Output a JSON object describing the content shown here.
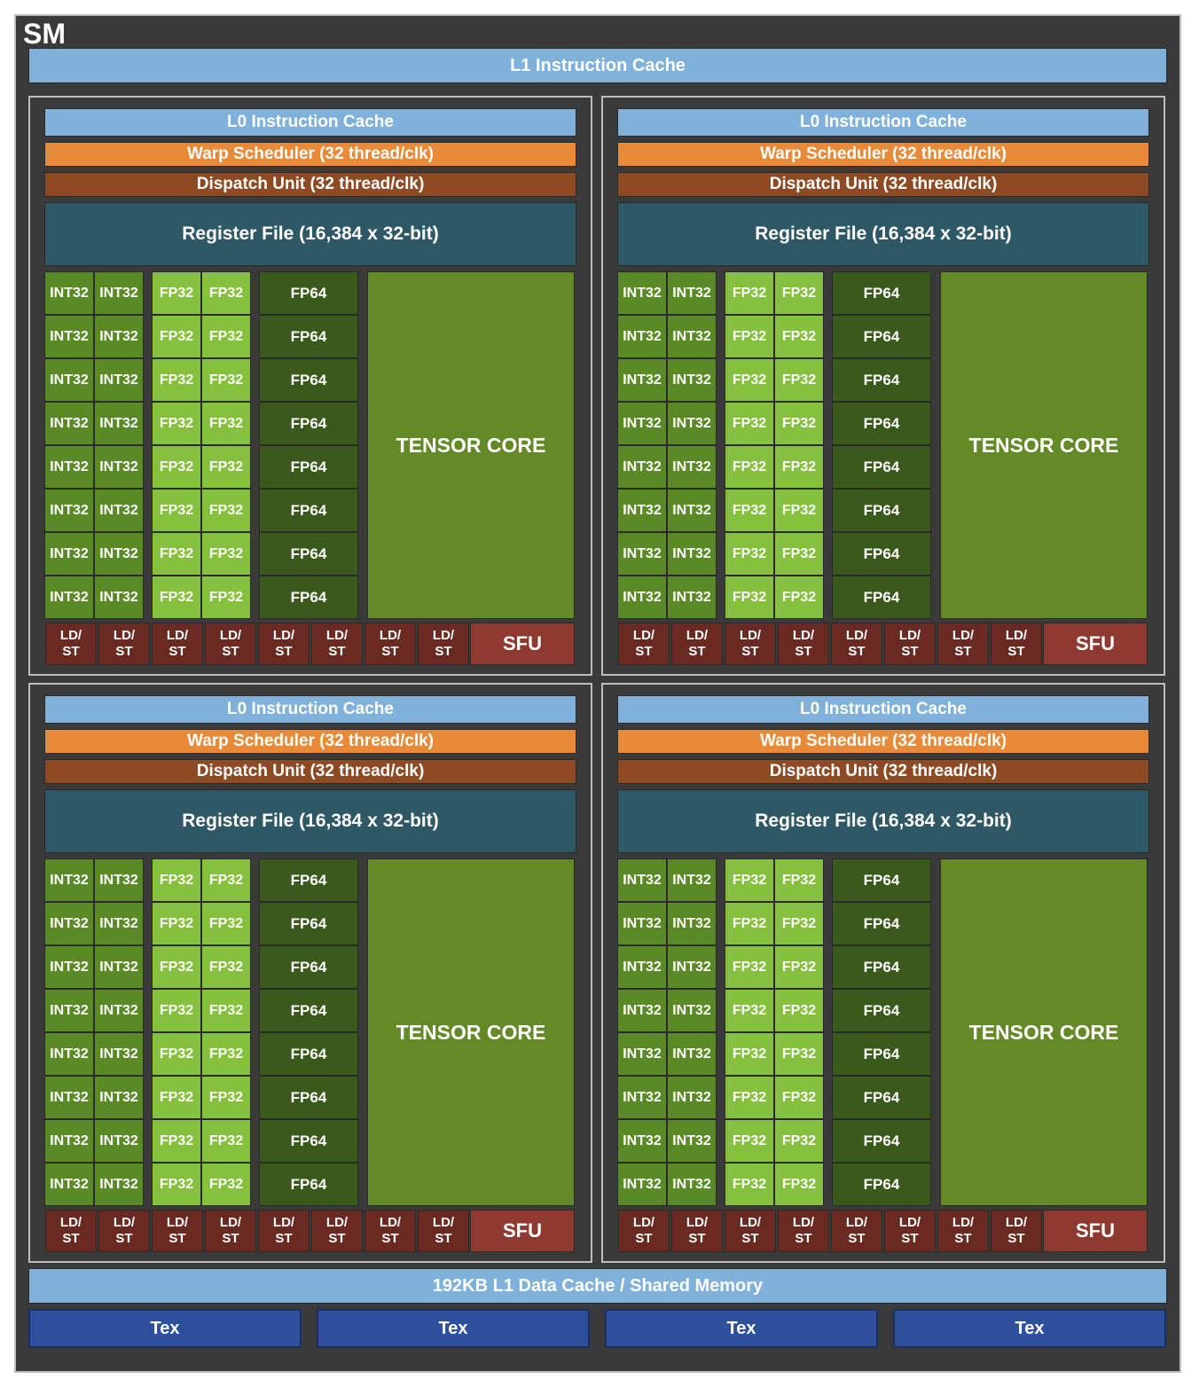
{
  "sm_label": "SM",
  "l1_instruction_cache": "L1 Instruction Cache",
  "l1_data_cache": "192KB L1 Data Cache / Shared Memory",
  "tex_units": [
    "Tex",
    "Tex",
    "Tex",
    "Tex"
  ],
  "partition": {
    "l0_cache": "L0 Instruction Cache",
    "warp_scheduler": "Warp Scheduler (32 thread/clk)",
    "dispatch_unit": "Dispatch Unit (32 thread/clk)",
    "register_file": "Register File (16,384 x 32-bit)",
    "int32_label": "INT32",
    "fp32_label": "FP32",
    "fp64_label": "FP64",
    "tensor_core": "TENSOR CORE",
    "ldst_top": "LD/",
    "ldst_bottom": "ST",
    "sfu": "SFU",
    "rows": 8,
    "ldst_units": 8
  },
  "partition_count": 4,
  "colors": {
    "cache": "#7fb1db",
    "warp_scheduler": "#e88a37",
    "dispatch_unit": "#8e4a22",
    "register_file": "#2f5866",
    "int32": "#5a8a26",
    "fp32": "#86c13d",
    "fp64": "#3a5a1c",
    "tensor_core": "#648a28",
    "ldst": "#6a2a22",
    "sfu": "#8e3a30",
    "tex": "#2d4f9c"
  }
}
